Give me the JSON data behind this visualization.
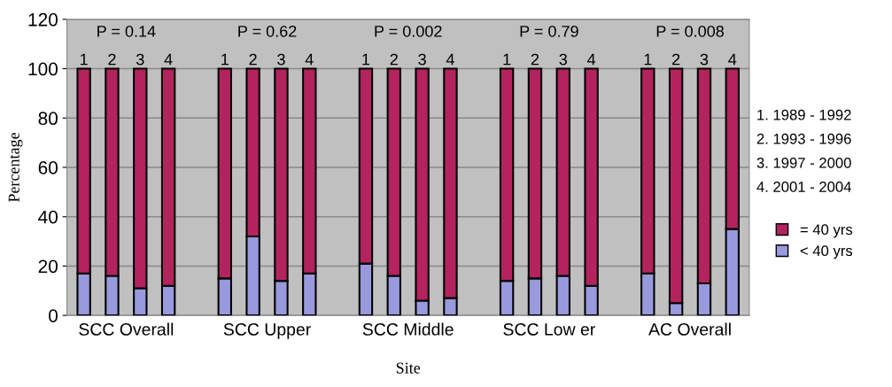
{
  "chart_data": {
    "type": "bar",
    "stacked": true,
    "xlabel": "Site",
    "ylabel": "Percentage",
    "categories": [
      "1",
      "2",
      "3",
      "4",
      null,
      "1",
      "2",
      "3",
      "4",
      null,
      "1",
      "2",
      "3",
      "4",
      null,
      "1",
      "2",
      "3",
      "4",
      null,
      "1",
      "2",
      "3",
      "4"
    ],
    "series": [
      {
        "name": "< 40 yrs",
        "color": "#9999dd",
        "values": [
          17,
          16,
          11,
          12,
          null,
          15,
          32,
          14,
          17,
          null,
          21,
          16,
          6,
          7,
          null,
          14,
          15,
          16,
          12,
          null,
          17,
          5,
          13,
          35
        ]
      },
      {
        "name": "= 40 yrs",
        "color": "#b3245e",
        "values": [
          83,
          84,
          89,
          88,
          null,
          85,
          68,
          86,
          83,
          null,
          79,
          84,
          94,
          93,
          null,
          86,
          85,
          84,
          88,
          null,
          83,
          95,
          87,
          65
        ]
      }
    ],
    "ylim": [
      0,
      120
    ],
    "yticks": [
      0,
      20,
      40,
      60,
      80,
      100,
      120
    ],
    "grid": "y",
    "legend": "right",
    "annotations": [
      "SCC Overall",
      "SCC Upper",
      "SCC Middle",
      "SCC Low er",
      "AC Overall",
      "P = 0.14",
      "P = 0.62",
      "P = 0.002",
      "P = 0.79",
      "P = 0.008",
      "1. 1989 - 1992",
      "2. 1993 - 1996",
      "3. 1997 - 2000",
      "4. 2001 - 2004"
    ]
  }
}
